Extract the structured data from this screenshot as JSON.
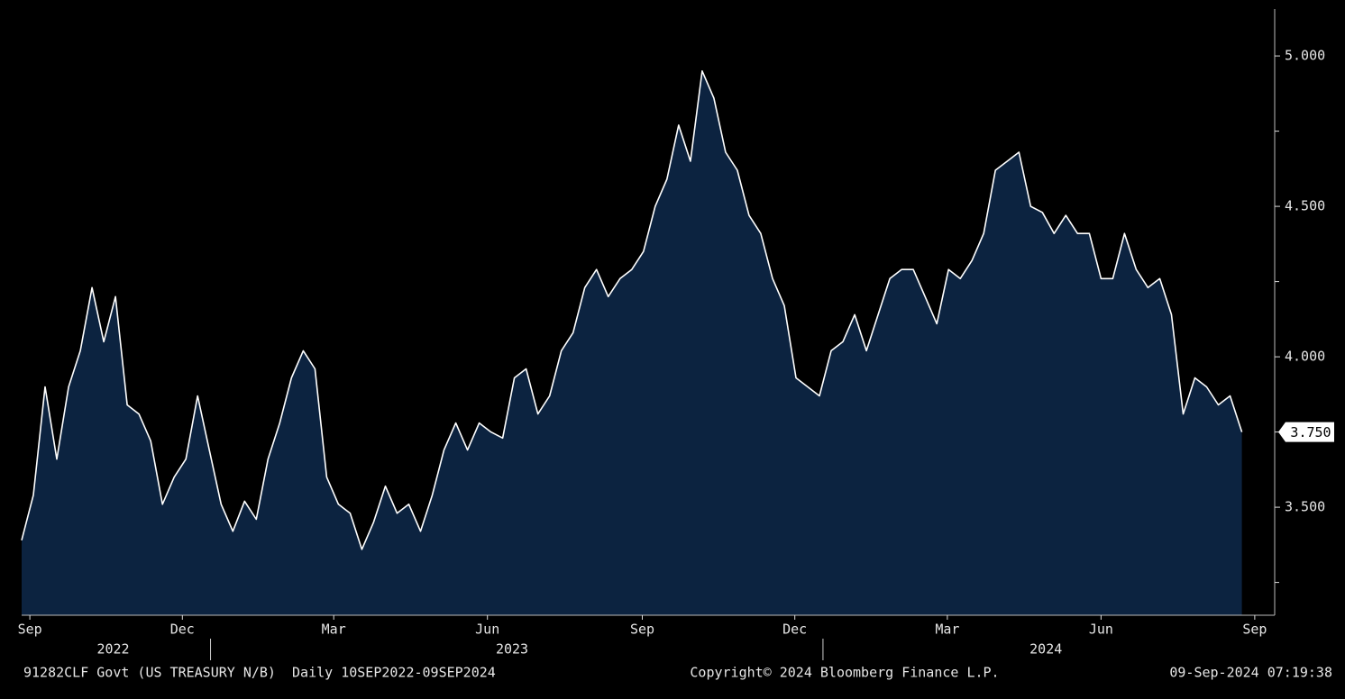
{
  "chart_data": {
    "type": "area",
    "series": [
      {
        "name": "91282CLF Govt",
        "color": "#ffffff",
        "fill": "#0c2340",
        "values": [
          3.39,
          3.54,
          3.9,
          3.66,
          3.9,
          4.02,
          4.23,
          4.05,
          4.2,
          3.84,
          3.81,
          3.72,
          3.51,
          3.6,
          3.66,
          3.87,
          3.69,
          3.51,
          3.42,
          3.52,
          3.46,
          3.66,
          3.78,
          3.93,
          4.02,
          3.96,
          3.6,
          3.51,
          3.48,
          3.36,
          3.45,
          3.57,
          3.48,
          3.51,
          3.42,
          3.54,
          3.69,
          3.78,
          3.69,
          3.78,
          3.75,
          3.73,
          3.93,
          3.96,
          3.81,
          3.87,
          4.02,
          4.08,
          4.23,
          4.29,
          4.2,
          4.26,
          4.29,
          4.35,
          4.5,
          4.59,
          4.77,
          4.65,
          4.95,
          4.86,
          4.68,
          4.62,
          4.47,
          4.41,
          4.26,
          4.17,
          3.93,
          3.9,
          3.87,
          4.02,
          4.05,
          4.14,
          4.02,
          4.14,
          4.26,
          4.29,
          4.29,
          4.2,
          4.11,
          4.29,
          4.26,
          4.32,
          4.41,
          4.62,
          4.65,
          4.68,
          4.5,
          4.48,
          4.41,
          4.47,
          4.41,
          4.41,
          4.26,
          4.26,
          4.41,
          4.29,
          4.23,
          4.26,
          4.14,
          3.81,
          3.93,
          3.9,
          3.84,
          3.87,
          3.75
        ]
      }
    ],
    "xlim": [
      0,
      106.8
    ],
    "ylim": [
      3.141,
      5.156
    ],
    "yticks": [
      {
        "value": 3.5,
        "label": "3.500"
      },
      {
        "value": 4,
        "label": "4.000"
      },
      {
        "value": 4.5,
        "label": "4.500"
      },
      {
        "value": 5,
        "label": "5.000"
      }
    ],
    "yticks_minor": [
      3.25,
      3.75,
      4.25,
      4.75
    ],
    "xticks": [
      {
        "value": 0.7,
        "label": "Sep"
      },
      {
        "value": 13.7,
        "label": "Dec"
      },
      {
        "value": 26.6,
        "label": "Mar"
      },
      {
        "value": 39.7,
        "label": "Jun"
      },
      {
        "value": 52.9,
        "label": "Sep"
      },
      {
        "value": 65.9,
        "label": "Dec"
      },
      {
        "value": 78.9,
        "label": "Mar"
      },
      {
        "value": 92,
        "label": "Jun"
      },
      {
        "value": 105.1,
        "label": "Sep"
      }
    ],
    "xticks_year": [
      {
        "value": 7.8,
        "label": "2022"
      },
      {
        "value": 41.8,
        "label": "2023"
      },
      {
        "value": 87.3,
        "label": "2024"
      }
    ],
    "year_boundaries": [
      16.1,
      68.3
    ],
    "last_value_label": {
      "value": 3.75,
      "label": "3.750"
    },
    "footer": {
      "left": "91282CLF Govt (US TREASURY N/B)  Daily 10SEP2022-09SEP2024",
      "center": "Copyright© 2024 Bloomberg Finance L.P.",
      "right": "09-Sep-2024 07:19:38"
    }
  }
}
